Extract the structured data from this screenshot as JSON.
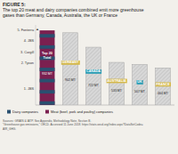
{
  "chart_data": {
    "type": "bar",
    "title": "FIGURE 5:",
    "subtitle": "The top 20 meat and dairy companies combined emit more greenhouse\ngases than Germany, Canada, Australia, the UK or France",
    "categories": [
      "Top 20\nTotal",
      "GERMANY",
      "CANADA",
      "AUSTRALIA",
      "UK",
      "FRANCE"
    ],
    "values": [
      932,
      902,
      722,
      533,
      507,
      464
    ],
    "value_labels": [
      "932 MT",
      "902 MT",
      "722 MT",
      "533 MT",
      "507 MT",
      "464 MT"
    ],
    "data_labels": true,
    "colors": [
      "#7b2050",
      "#d8d8d8",
      "#d8d8d8",
      "#d8d8d8",
      "#d8d8d8",
      "#d8d8d8"
    ],
    "label_colors": [
      null,
      "#d4b84a",
      "#2a9db5",
      "#d4b84a",
      "#2a9db5",
      "#d4b84a"
    ],
    "ylim": [
      0,
      1000
    ],
    "tick_labels": false,
    "grid": false,
    "annotations": [
      {
        "text": "▲",
        "y": 970
      },
      {
        "text": "5. Fonterra",
        "y": 930
      },
      {
        "text": "4. JBS",
        "y": 800
      },
      {
        "text": "3. Cargill",
        "y": 660
      },
      {
        "text": "2. Tyson",
        "y": 520
      },
      {
        "text": "1. JBS",
        "y": 200
      }
    ],
    "legend": "bottom",
    "legend_entries": [
      {
        "name": "Dairy companies",
        "color": "#2a5070"
      },
      {
        "name": "Meat (beef, pork and poultry) companies",
        "color": "#7b2050"
      }
    ],
    "source": "Sources: GRAIN & IATP. See Appendix, Methodology Note, Section B.\n\"Greenhouse gas emissions,\" OECD. Accessed 11 June 2018. https://stats.oecd.org/Index.aspx?DataSetCode=\nAIR_GHG.",
    "background": "#f2f0eb"
  }
}
